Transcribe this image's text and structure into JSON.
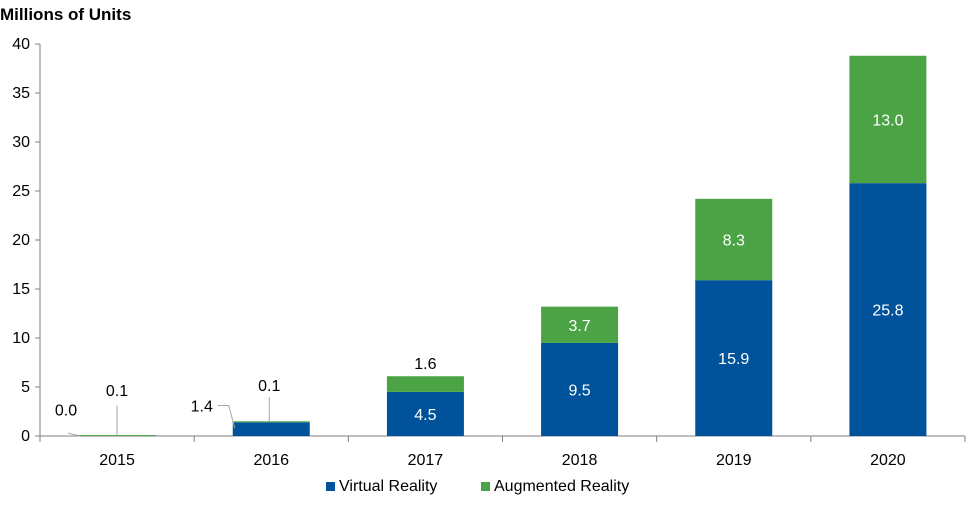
{
  "chart_data": {
    "type": "bar",
    "stacked": true,
    "title": "Millions of Units",
    "categories": [
      "2015",
      "2016",
      "2017",
      "2018",
      "2019",
      "2020"
    ],
    "series": [
      {
        "name": "Virtual Reality",
        "color": "#00539b",
        "values": [
          0.0,
          1.4,
          4.5,
          9.5,
          15.9,
          25.8
        ],
        "labels": [
          "0.0",
          "1.4",
          "4.5",
          "9.5",
          "15.9",
          "25.8"
        ]
      },
      {
        "name": "Augmented Reality",
        "color": "#4ba345",
        "values": [
          0.1,
          0.1,
          1.6,
          3.7,
          8.3,
          13.0
        ],
        "labels": [
          "0.1",
          "0.1",
          "1.6",
          "3.7",
          "8.3",
          "13.0"
        ]
      }
    ],
    "ylim": [
      0,
      40
    ],
    "yticks": [
      "0",
      "5",
      "10",
      "15",
      "20",
      "25",
      "30",
      "35",
      "40"
    ],
    "grid": false,
    "legend": "bottom-center"
  }
}
